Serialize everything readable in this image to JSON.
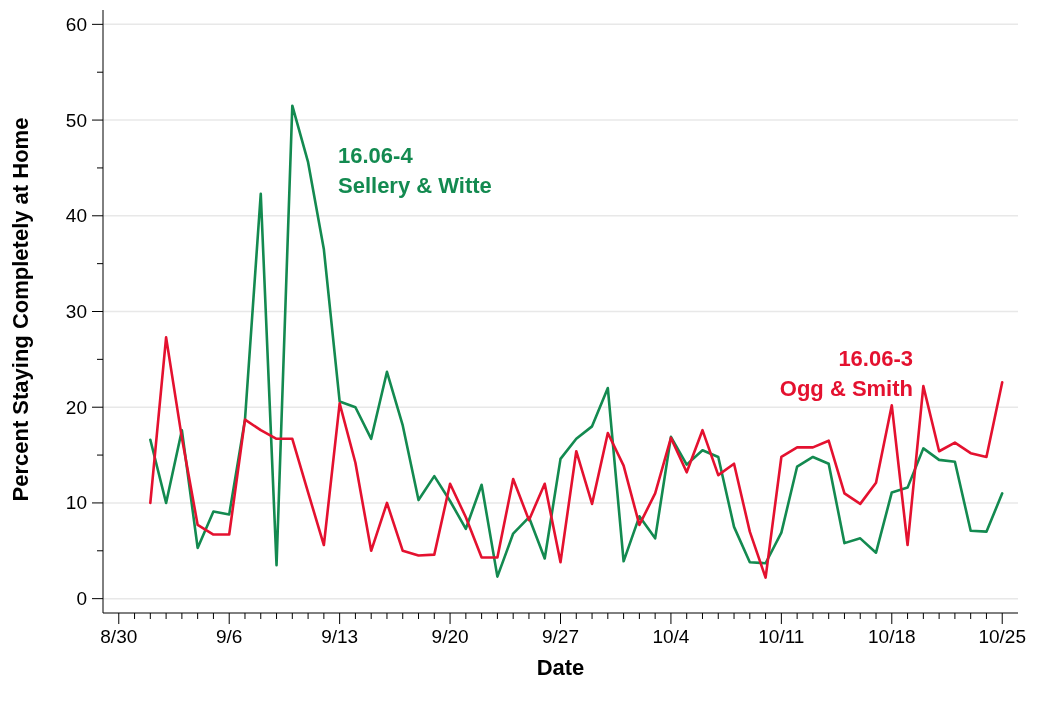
{
  "chart_data": {
    "type": "line",
    "xlabel": "Date",
    "ylabel": "Percent Staying Completely at Home",
    "x": [
      "--09-01",
      "--09-02",
      "--09-03",
      "--09-04",
      "--09-05",
      "--09-06",
      "--09-07",
      "--09-08",
      "--09-09",
      "--09-10",
      "--09-11",
      "--09-12",
      "--09-13",
      "--09-14",
      "--09-15",
      "--09-16",
      "--09-17",
      "--09-18",
      "--09-19",
      "--09-20",
      "--09-21",
      "--09-22",
      "--09-23",
      "--09-24",
      "--09-25",
      "--09-26",
      "--09-27",
      "--09-28",
      "--09-29",
      "--09-30",
      "--10-01",
      "--10-02",
      "--10-03",
      "--10-04",
      "--10-05",
      "--10-06",
      "--10-07",
      "--10-08",
      "--10-09",
      "--10-10",
      "--10-11",
      "--10-12",
      "--10-13",
      "--10-14",
      "--10-15",
      "--10-16",
      "--10-17",
      "--10-18",
      "--10-19",
      "--10-20",
      "--10-21",
      "--10-22",
      "--10-23",
      "--10-24",
      "--10-25"
    ],
    "series": [
      {
        "name": "16.06-4 Sellery & Witte",
        "color": "#138a50",
        "values": [
          16.6,
          10,
          17.6,
          5.3,
          9.1,
          8.8,
          18.7,
          42.3,
          3.5,
          51.5,
          45.6,
          36.5,
          20.6,
          20,
          16.7,
          23.7,
          18.1,
          10.3,
          12.8,
          10.2,
          7.3,
          11.9,
          2.3,
          6.8,
          8.5,
          4.2,
          14.6,
          16.7,
          18,
          22,
          3.9,
          8.6,
          6.3,
          16.9,
          14,
          15.5,
          14.8,
          7.5,
          3.8,
          3.7,
          6.9,
          13.8,
          14.8,
          14.1,
          5.8,
          6.3,
          4.8,
          11.1,
          11.6,
          15.7,
          14.5,
          14.3,
          7.1,
          7,
          11
        ]
      },
      {
        "name": "16.06-3 Ogg & Smith",
        "color": "#e4112f",
        "values": [
          10,
          27.3,
          16.8,
          7.7,
          6.7,
          6.7,
          18.7,
          17.6,
          16.7,
          16.7,
          11.1,
          5.6,
          20.4,
          14.2,
          5,
          10,
          5,
          4.5,
          4.6,
          12,
          8.5,
          4.3,
          4.3,
          12.5,
          8.2,
          12,
          3.8,
          15.4,
          9.9,
          17.3,
          13.9,
          7.7,
          11,
          16.8,
          13.2,
          17.6,
          12.9,
          14.1,
          7,
          2.2,
          14.8,
          15.8,
          15.8,
          16.5,
          11,
          9.9,
          12.1,
          20.2,
          5.6,
          22.2,
          15.4,
          16.3,
          15.2,
          14.8,
          22.6
        ]
      }
    ],
    "xlim": [
      "--08-29",
      "--10-26"
    ],
    "xticks": [
      {
        "value": "--08-30",
        "label": "8/30"
      },
      {
        "value": "--08-31",
        "label": null
      },
      {
        "value": "--09-01",
        "label": null
      },
      {
        "value": "--09-02",
        "label": null
      },
      {
        "value": "--09-03",
        "label": null
      },
      {
        "value": "--09-04",
        "label": null
      },
      {
        "value": "--09-05",
        "label": null
      },
      {
        "value": "--09-06",
        "label": "9/6"
      },
      {
        "value": "--09-07",
        "label": null
      },
      {
        "value": "--09-08",
        "label": null
      },
      {
        "value": "--09-09",
        "label": null
      },
      {
        "value": "--09-10",
        "label": null
      },
      {
        "value": "--09-11",
        "label": null
      },
      {
        "value": "--09-12",
        "label": null
      },
      {
        "value": "--09-13",
        "label": "9/13"
      },
      {
        "value": "--09-14",
        "label": null
      },
      {
        "value": "--09-15",
        "label": null
      },
      {
        "value": "--09-16",
        "label": null
      },
      {
        "value": "--09-17",
        "label": null
      },
      {
        "value": "--09-18",
        "label": null
      },
      {
        "value": "--09-19",
        "label": null
      },
      {
        "value": "--09-20",
        "label": "9/20"
      },
      {
        "value": "--09-21",
        "label": null
      },
      {
        "value": "--09-22",
        "label": null
      },
      {
        "value": "--09-23",
        "label": null
      },
      {
        "value": "--09-24",
        "label": null
      },
      {
        "value": "--09-25",
        "label": null
      },
      {
        "value": "--09-26",
        "label": null
      },
      {
        "value": "--09-27",
        "label": "9/27"
      },
      {
        "value": "--09-28",
        "label": null
      },
      {
        "value": "--09-29",
        "label": null
      },
      {
        "value": "--09-30",
        "label": null
      },
      {
        "value": "--10-01",
        "label": null
      },
      {
        "value": "--10-02",
        "label": null
      },
      {
        "value": "--10-03",
        "label": null
      },
      {
        "value": "--10-04",
        "label": "10/4"
      },
      {
        "value": "--10-05",
        "label": null
      },
      {
        "value": "--10-06",
        "label": null
      },
      {
        "value": "--10-07",
        "label": null
      },
      {
        "value": "--10-08",
        "label": null
      },
      {
        "value": "--10-09",
        "label": null
      },
      {
        "value": "--10-10",
        "label": null
      },
      {
        "value": "--10-11",
        "label": "10/11"
      },
      {
        "value": "--10-12",
        "label": null
      },
      {
        "value": "--10-13",
        "label": null
      },
      {
        "value": "--10-14",
        "label": null
      },
      {
        "value": "--10-15",
        "label": null
      },
      {
        "value": "--10-16",
        "label": null
      },
      {
        "value": "--10-17",
        "label": null
      },
      {
        "value": "--10-18",
        "label": "10/18"
      },
      {
        "value": "--10-19",
        "label": null
      },
      {
        "value": "--10-20",
        "label": null
      },
      {
        "value": "--10-21",
        "label": null
      },
      {
        "value": "--10-22",
        "label": null
      },
      {
        "value": "--10-23",
        "label": null
      },
      {
        "value": "--10-24",
        "label": null
      },
      {
        "value": "--10-25",
        "label": "10/25"
      }
    ],
    "ylim": [
      -1.5,
      61.5
    ],
    "yticks": [
      0,
      {
        "value": 5,
        "label": null
      },
      10,
      {
        "value": 15,
        "label": null
      },
      20,
      {
        "value": 25,
        "label": null
      },
      30,
      {
        "value": 35,
        "label": null
      },
      40,
      {
        "value": 45,
        "label": null
      },
      50,
      {
        "value": 55,
        "label": null
      },
      60
    ],
    "grid": "y",
    "marker": "none",
    "line_style": "solid",
    "legend": false
  }
}
